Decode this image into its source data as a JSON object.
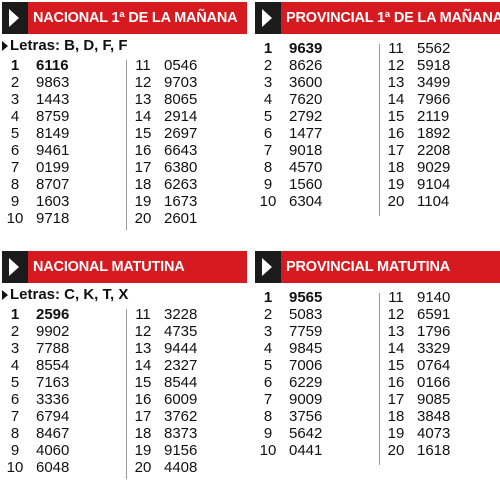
{
  "panels": [
    {
      "title": "NACIONAL 1ª DE LA MAÑANA",
      "letras": "Letras: B, D, F, F",
      "left": [
        {
          "pos": "1",
          "num": "6116"
        },
        {
          "pos": "2",
          "num": "9863"
        },
        {
          "pos": "3",
          "num": "1443"
        },
        {
          "pos": "4",
          "num": "8759"
        },
        {
          "pos": "5",
          "num": "8149"
        },
        {
          "pos": "6",
          "num": "9461"
        },
        {
          "pos": "7",
          "num": "0199"
        },
        {
          "pos": "8",
          "num": "8707"
        },
        {
          "pos": "9",
          "num": "1603"
        },
        {
          "pos": "10",
          "num": "9718"
        }
      ],
      "right": [
        {
          "pos": "11",
          "num": "0546"
        },
        {
          "pos": "12",
          "num": "9703"
        },
        {
          "pos": "13",
          "num": "8065"
        },
        {
          "pos": "14",
          "num": "2914"
        },
        {
          "pos": "15",
          "num": "2697"
        },
        {
          "pos": "16",
          "num": "6643"
        },
        {
          "pos": "17",
          "num": "6380"
        },
        {
          "pos": "18",
          "num": "6263"
        },
        {
          "pos": "19",
          "num": "1673"
        },
        {
          "pos": "20",
          "num": "2601"
        }
      ]
    },
    {
      "title": "PROVINCIAL 1ª DE LA MAÑANA",
      "letras": "",
      "left": [
        {
          "pos": "1",
          "num": "9639"
        },
        {
          "pos": "2",
          "num": "8626"
        },
        {
          "pos": "3",
          "num": "3600"
        },
        {
          "pos": "4",
          "num": "7620"
        },
        {
          "pos": "5",
          "num": "2792"
        },
        {
          "pos": "6",
          "num": "1477"
        },
        {
          "pos": "7",
          "num": "9018"
        },
        {
          "pos": "8",
          "num": "4570"
        },
        {
          "pos": "9",
          "num": "1560"
        },
        {
          "pos": "10",
          "num": "6304"
        }
      ],
      "right": [
        {
          "pos": "11",
          "num": "5562"
        },
        {
          "pos": "12",
          "num": "5918"
        },
        {
          "pos": "13",
          "num": "3499"
        },
        {
          "pos": "14",
          "num": "7966"
        },
        {
          "pos": "15",
          "num": "2119"
        },
        {
          "pos": "16",
          "num": "1892"
        },
        {
          "pos": "17",
          "num": "2208"
        },
        {
          "pos": "18",
          "num": "9029"
        },
        {
          "pos": "19",
          "num": "9104"
        },
        {
          "pos": "20",
          "num": "1104"
        }
      ]
    },
    {
      "title": "NACIONAL MATUTINA",
      "letras": "Letras: C, K, T, X",
      "left": [
        {
          "pos": "1",
          "num": "2596"
        },
        {
          "pos": "2",
          "num": "9902"
        },
        {
          "pos": "3",
          "num": "7788"
        },
        {
          "pos": "4",
          "num": "8554"
        },
        {
          "pos": "5",
          "num": "7163"
        },
        {
          "pos": "6",
          "num": "3336"
        },
        {
          "pos": "7",
          "num": "6794"
        },
        {
          "pos": "8",
          "num": "8467"
        },
        {
          "pos": "9",
          "num": "4060"
        },
        {
          "pos": "10",
          "num": "6048"
        }
      ],
      "right": [
        {
          "pos": "11",
          "num": "3228"
        },
        {
          "pos": "12",
          "num": "4735"
        },
        {
          "pos": "13",
          "num": "9444"
        },
        {
          "pos": "14",
          "num": "2327"
        },
        {
          "pos": "15",
          "num": "8544"
        },
        {
          "pos": "16",
          "num": "6009"
        },
        {
          "pos": "17",
          "num": "3762"
        },
        {
          "pos": "18",
          "num": "8373"
        },
        {
          "pos": "19",
          "num": "9156"
        },
        {
          "pos": "20",
          "num": "4408"
        }
      ]
    },
    {
      "title": "PROVINCIAL MATUTINA",
      "letras": "",
      "left": [
        {
          "pos": "1",
          "num": "9565"
        },
        {
          "pos": "2",
          "num": "5083"
        },
        {
          "pos": "3",
          "num": "7759"
        },
        {
          "pos": "4",
          "num": "9845"
        },
        {
          "pos": "5",
          "num": "7006"
        },
        {
          "pos": "6",
          "num": "6229"
        },
        {
          "pos": "7",
          "num": "9009"
        },
        {
          "pos": "8",
          "num": "3756"
        },
        {
          "pos": "9",
          "num": "5642"
        },
        {
          "pos": "10",
          "num": "0441"
        }
      ],
      "right": [
        {
          "pos": "11",
          "num": "9140"
        },
        {
          "pos": "12",
          "num": "6591"
        },
        {
          "pos": "13",
          "num": "1796"
        },
        {
          "pos": "14",
          "num": "3329"
        },
        {
          "pos": "15",
          "num": "0764"
        },
        {
          "pos": "16",
          "num": "0166"
        },
        {
          "pos": "17",
          "num": "9085"
        },
        {
          "pos": "18",
          "num": "3848"
        },
        {
          "pos": "19",
          "num": "4073"
        },
        {
          "pos": "20",
          "num": "1618"
        }
      ]
    }
  ]
}
